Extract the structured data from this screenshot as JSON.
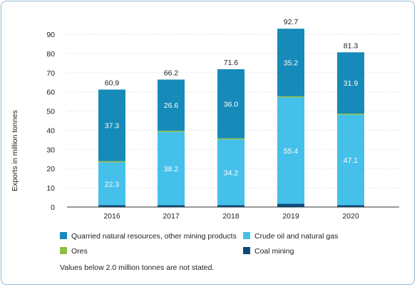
{
  "colors": {
    "coal": "#0d4a78",
    "crude": "#45c0ea",
    "ores": "#8cbf3f",
    "quarried": "#168ab8",
    "axis": "#333333",
    "grid": "#dddddd"
  },
  "chart_data": {
    "type": "bar",
    "stacked": true,
    "categories": [
      "2016",
      "2017",
      "2018",
      "2019",
      "2020"
    ],
    "ylabel": "Exports in million tonnes",
    "xlabel": "",
    "ylim": [
      0,
      90
    ],
    "yticks": [
      0,
      10,
      20,
      30,
      40,
      50,
      60,
      70,
      80,
      90
    ],
    "totals": [
      "60.9",
      "66.2",
      "71.6",
      "92.7",
      "81.3"
    ],
    "series": [
      {
        "key": "coal",
        "name": "Coal mining",
        "values": [
          1.0,
          1.0,
          1.0,
          1.7,
          1.0
        ],
        "labels": [
          "",
          "",
          "",
          "",
          ""
        ]
      },
      {
        "key": "crude",
        "name": "Crude oil and natural gas",
        "values": [
          22.3,
          38.2,
          34.2,
          55.4,
          47.1
        ],
        "labels": [
          "22.3",
          "38.2",
          "34.2",
          "55.4",
          "47.1"
        ]
      },
      {
        "key": "ores",
        "name": "Ores",
        "values": [
          0.6,
          0.6,
          0.6,
          0.6,
          0.6
        ],
        "labels": [
          "",
          "",
          "",
          "",
          ""
        ]
      },
      {
        "key": "quarried",
        "name": "Quarried natural resources, other mining products",
        "values": [
          37.3,
          26.6,
          36.0,
          35.2,
          31.9
        ],
        "labels": [
          "37.3",
          "26.6",
          "36.0",
          "35.2",
          "31.9"
        ]
      }
    ],
    "legend_order": [
      "quarried",
      "crude",
      "ores",
      "coal"
    ],
    "note": "Values below 2.0 million tonnes are not stated."
  }
}
